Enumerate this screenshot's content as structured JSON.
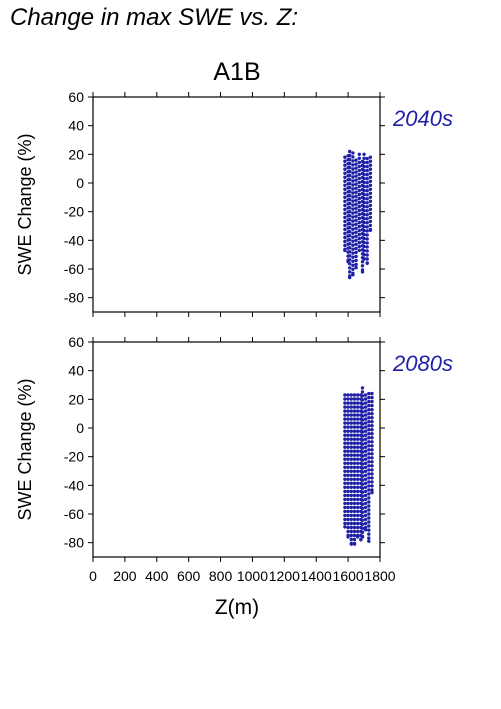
{
  "figure": {
    "suptitle": "Change in max SWE vs. Z:",
    "scenario": "A1B",
    "xlabel": "Z(m)"
  },
  "colors": {
    "points": "#1f1fa8",
    "axis": "#000000"
  },
  "chart_data": [
    {
      "type": "scatter",
      "title": "A1B",
      "panel_label": "2040s",
      "xlabel": "Z(m)",
      "ylabel": "SWE Change (%)",
      "xlim": [
        0,
        1800
      ],
      "ylim": [
        -90,
        60
      ],
      "xticks": [
        0,
        200,
        400,
        600,
        800,
        1000,
        1200,
        1400,
        1600,
        1800
      ],
      "yticks": [
        -80,
        -60,
        -40,
        -20,
        0,
        20,
        40,
        60
      ],
      "grid": false,
      "series": [
        {
          "columns": [
            {
              "x": 1580,
              "ymin": -47,
              "ymax": 18
            },
            {
              "x": 1600,
              "ymin": -55,
              "ymax": 19
            },
            {
              "x": 1610,
              "ymin": -66,
              "ymax": 22
            },
            {
              "x": 1630,
              "ymin": -64,
              "ymax": 21
            },
            {
              "x": 1650,
              "ymin": -59,
              "ymax": 16
            },
            {
              "x": 1670,
              "ymin": -47,
              "ymax": 20
            },
            {
              "x": 1690,
              "ymin": -62,
              "ymax": 15
            },
            {
              "x": 1700,
              "ymin": -53,
              "ymax": 20
            },
            {
              "x": 1720,
              "ymin": -56,
              "ymax": 17
            },
            {
              "x": 1740,
              "ymin": -33,
              "ymax": 18
            }
          ]
        }
      ]
    },
    {
      "type": "scatter",
      "title": "",
      "panel_label": "2080s",
      "xlabel": "Z(m)",
      "ylabel": "SWE Change (%)",
      "xlim": [
        0,
        1800
      ],
      "ylim": [
        -90,
        60
      ],
      "xticks": [
        0,
        200,
        400,
        600,
        800,
        1000,
        1200,
        1400,
        1600,
        1800
      ],
      "xticklabels": [
        "0",
        "200",
        "400",
        "600",
        "800",
        "1000",
        "1200",
        "1400",
        "1600",
        "1800"
      ],
      "yticks": [
        -80,
        -60,
        -40,
        -20,
        0,
        20,
        40,
        60
      ],
      "grid": false,
      "series": [
        {
          "columns": [
            {
              "x": 1580,
              "ymin": -69,
              "ymax": 23
            },
            {
              "x": 1600,
              "ymin": -76,
              "ymax": 23
            },
            {
              "x": 1620,
              "ymin": -81,
              "ymax": 23
            },
            {
              "x": 1640,
              "ymin": -81,
              "ymax": 23
            },
            {
              "x": 1660,
              "ymin": -76,
              "ymax": 23
            },
            {
              "x": 1680,
              "ymin": -78,
              "ymax": 23
            },
            {
              "x": 1690,
              "ymin": -76,
              "ymax": 28
            },
            {
              "x": 1710,
              "ymin": -71,
              "ymax": 23
            },
            {
              "x": 1730,
              "ymin": -79,
              "ymax": 24
            },
            {
              "x": 1750,
              "ymin": -45,
              "ymax": 24
            }
          ]
        }
      ]
    }
  ]
}
